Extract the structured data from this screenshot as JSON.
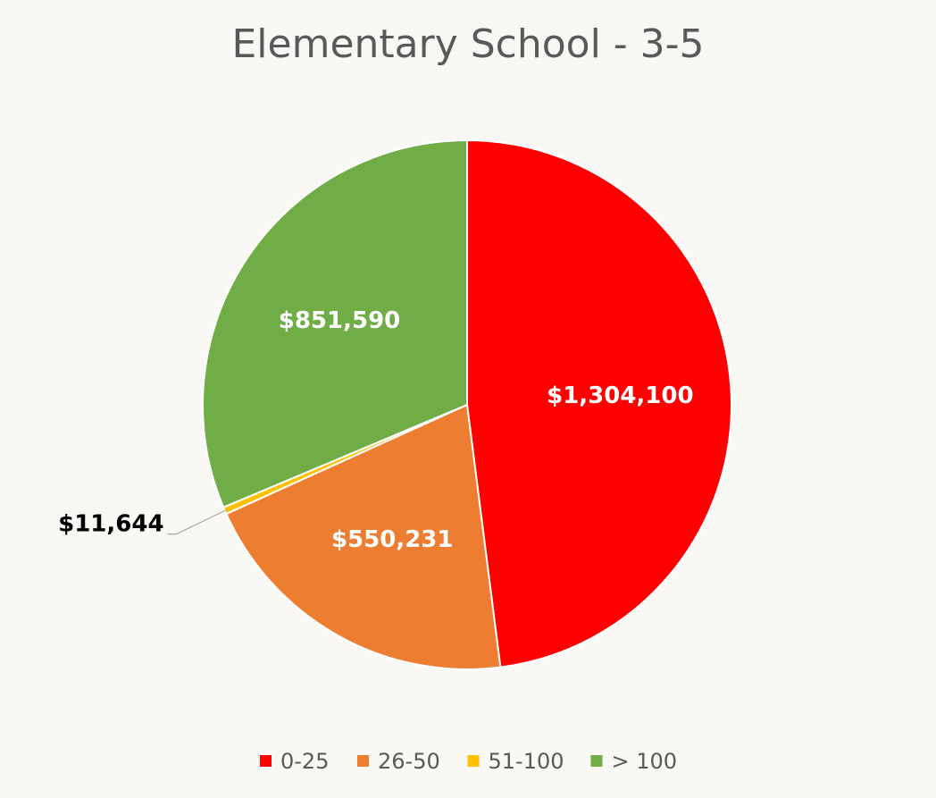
{
  "chart_data": {
    "type": "pie",
    "title": "Elementary School - 3-5",
    "categories": [
      "0-25",
      "26-50",
      "51-100",
      "> 100"
    ],
    "values": [
      1304100,
      550231,
      11644,
      851590
    ],
    "data_labels": [
      "$1,304,100",
      "$550,231",
      "$11,644",
      "$851,590"
    ],
    "colors": [
      "#ff0000",
      "#ed7d31",
      "#ffc000",
      "#70ad47"
    ],
    "label_colors": [
      "#ffffff",
      "#ffffff",
      "#000000",
      "#ffffff"
    ],
    "start_angle_deg": 0,
    "direction": "clockwise",
    "legend_position": "bottom"
  }
}
